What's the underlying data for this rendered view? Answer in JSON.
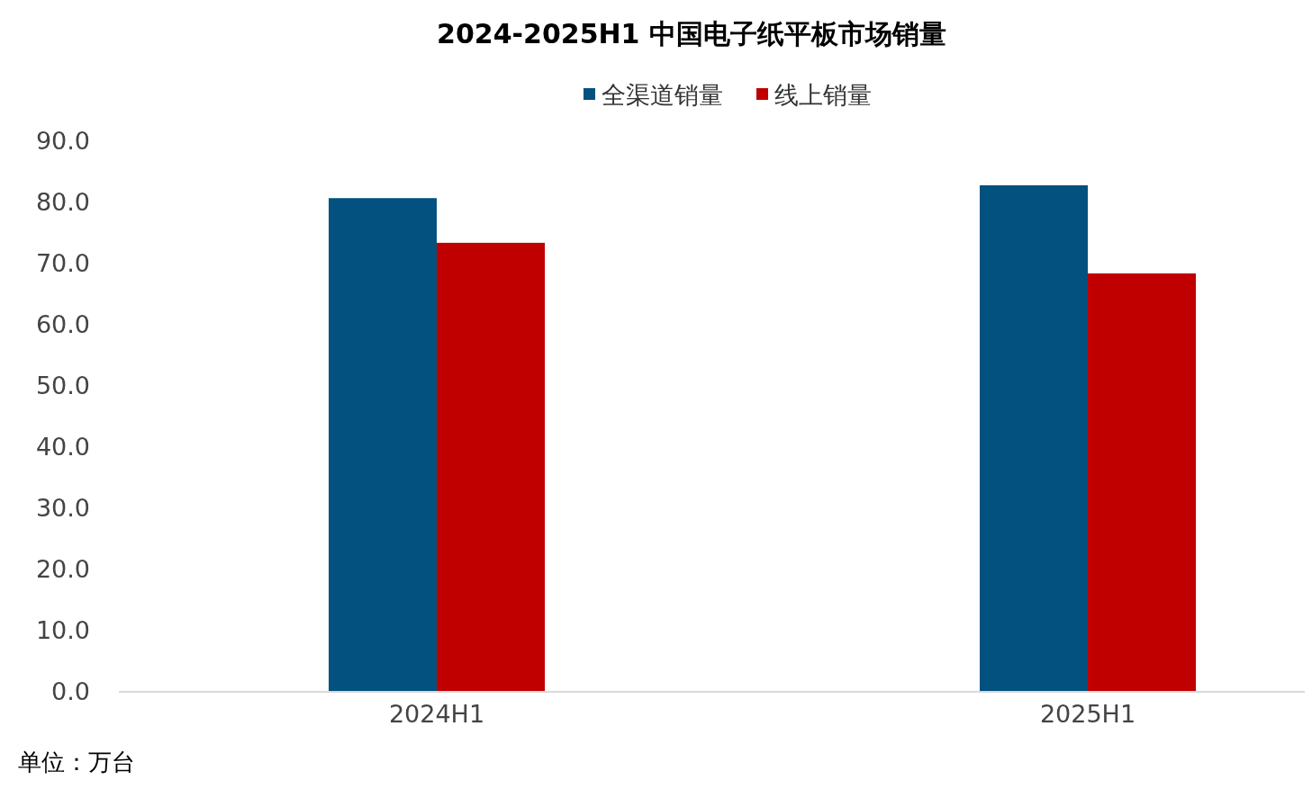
{
  "chart_data": {
    "type": "bar",
    "title": "2024-2025H1 中国电子纸平板市场销量",
    "categories": [
      "2024H1",
      "2025H1"
    ],
    "series": [
      {
        "name": "全渠道销量",
        "color": "#02517f",
        "values": [
          80.7,
          82.8
        ]
      },
      {
        "name": "线上销量",
        "color": "#c00000",
        "values": [
          73.4,
          68.4
        ]
      }
    ],
    "ylim": [
      0,
      90
    ],
    "yticks": [
      {
        "value": 0,
        "label": "0.0"
      },
      {
        "value": 10,
        "label": "10.0"
      },
      {
        "value": 20,
        "label": "20.0"
      },
      {
        "value": 30,
        "label": "30.0"
      },
      {
        "value": 40,
        "label": "40.0"
      },
      {
        "value": 50,
        "label": "50.0"
      },
      {
        "value": 60,
        "label": "60.0"
      },
      {
        "value": 70,
        "label": "70.0"
      },
      {
        "value": 80,
        "label": "80.0"
      },
      {
        "value": 90,
        "label": "90.0"
      }
    ],
    "grid": false,
    "legend": "top",
    "annotations": [
      "单位：万台"
    ]
  }
}
